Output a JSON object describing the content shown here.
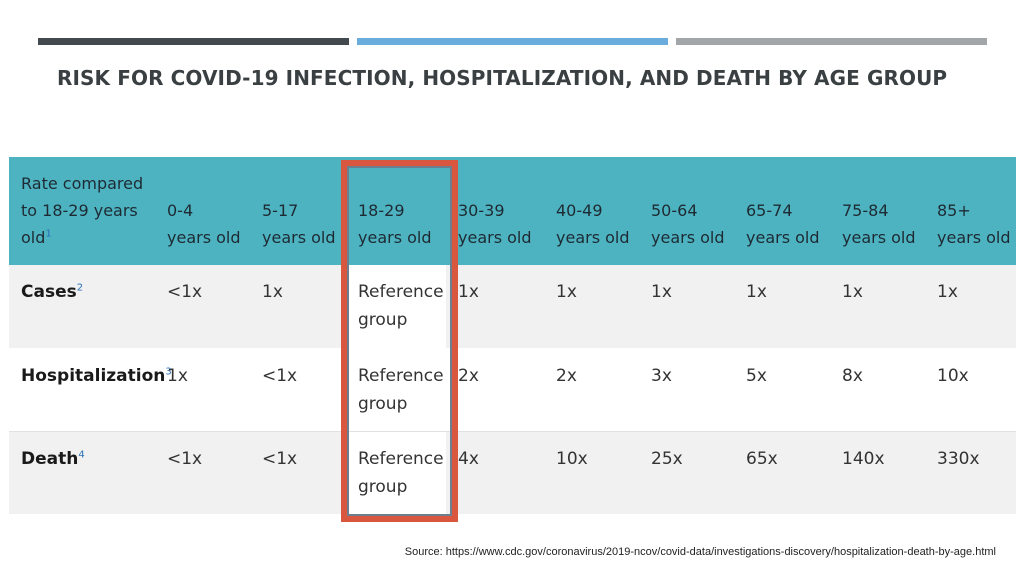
{
  "slide": {
    "title": "RISK FOR COVID-19 INFECTION, HOSPITALIZATION, AND DEATH BY AGE GROUP",
    "source": "Source: https://www.cdc.gov/coronavirus/2019-ncov/covid-data/investigations-discovery/hospitalization-death-by-age.html",
    "colors": {
      "accent_dark": "#424a4f",
      "accent_blue": "#6aaddc",
      "accent_gray": "#a3a6a8",
      "header_teal": "#4db3c1",
      "highlight": "#d9573e"
    }
  },
  "table": {
    "corner": {
      "label": "Rate compared to 18-29 years old",
      "sup": "1"
    },
    "headers": [
      {
        "line1": "0-4",
        "line2": "years old"
      },
      {
        "line1": "5-17",
        "line2": "years old"
      },
      {
        "line1": "18-29",
        "line2": "years old"
      },
      {
        "line1": "30-39",
        "line2": "years old"
      },
      {
        "line1": "40-49",
        "line2": "years old"
      },
      {
        "line1": "50-64",
        "line2": "years old"
      },
      {
        "line1": "65-74",
        "line2": "years old"
      },
      {
        "line1": "75-84",
        "line2": "years old"
      },
      {
        "line1": "85+",
        "line2": "years old"
      }
    ],
    "rows": [
      {
        "label": "Cases",
        "sup": "2",
        "values": [
          "<1x",
          "1x",
          "Reference group",
          "1x",
          "1x",
          "1x",
          "1x",
          "1x",
          "1x"
        ]
      },
      {
        "label": "Hospitalization",
        "sup": "3",
        "values": [
          "1x",
          "<1x",
          "Reference group",
          "2x",
          "2x",
          "3x",
          "5x",
          "8x",
          "10x"
        ]
      },
      {
        "label": "Death",
        "sup": "4",
        "values": [
          "<1x",
          "<1x",
          "Reference group",
          "4x",
          "10x",
          "25x",
          "65x",
          "140x",
          "330x"
        ]
      }
    ]
  }
}
